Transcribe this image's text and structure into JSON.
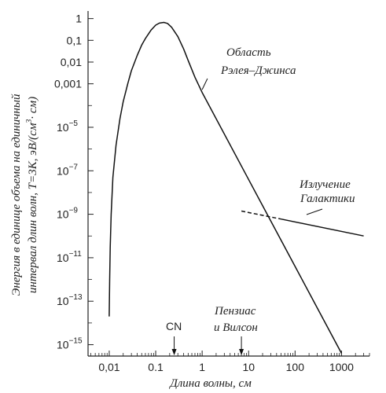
{
  "chart_data": {
    "type": "line",
    "title": "",
    "xlabel": "Длина волны, см",
    "ylabel_line1": "Энергия в единице объема на единичный",
    "ylabel_line2_a": "интервал длин волн, T=3K, эВ/(см",
    "ylabel_line2_sup": "3",
    "ylabel_line2_b": "· см)",
    "x_scale": "log",
    "y_scale": "log",
    "xlim": [
      0.0035,
      4000
    ],
    "ylim": [
      3e-16,
      1.6
    ],
    "x_ticks": [
      {
        "value": 0.01,
        "label": "0,01"
      },
      {
        "value": 0.1,
        "label": "0.1"
      },
      {
        "value": 1,
        "label": "1"
      },
      {
        "value": 10,
        "label": "10"
      },
      {
        "value": 100,
        "label": "100"
      },
      {
        "value": 1000,
        "label": "1000"
      }
    ],
    "y_ticks": [
      {
        "value": 1,
        "label": "1",
        "exp": ""
      },
      {
        "value": 0.1,
        "label": "0,1",
        "exp": ""
      },
      {
        "value": 0.01,
        "label": "0,01",
        "exp": ""
      },
      {
        "value": 0.001,
        "label": "0,001",
        "exp": ""
      },
      {
        "value": 1e-05,
        "label": "10",
        "exp": "−5"
      },
      {
        "value": 1e-07,
        "label": "10",
        "exp": "−7"
      },
      {
        "value": 1e-09,
        "label": "10",
        "exp": "−9"
      },
      {
        "value": 1e-11,
        "label": "10",
        "exp": "−11"
      },
      {
        "value": 1e-13,
        "label": "10",
        "exp": "−13"
      },
      {
        "value": 1e-15,
        "label": "10",
        "exp": "−15"
      }
    ],
    "series": [
      {
        "style": "solid",
        "points": [
          [
            0.01,
            2e-14
          ],
          [
            0.0102,
            1e-12
          ],
          [
            0.0105,
            3e-11
          ],
          [
            0.011,
            1e-09
          ],
          [
            0.012,
            5e-08
          ],
          [
            0.014,
            1.5e-06
          ],
          [
            0.017,
            2.5e-05
          ],
          [
            0.02,
            0.00015
          ],
          [
            0.025,
            0.001
          ],
          [
            0.03,
            0.004
          ],
          [
            0.04,
            0.02
          ],
          [
            0.05,
            0.06
          ],
          [
            0.06,
            0.12
          ],
          [
            0.08,
            0.3
          ],
          [
            0.1,
            0.5
          ],
          [
            0.12,
            0.62
          ],
          [
            0.15,
            0.67
          ],
          [
            0.18,
            0.6
          ],
          [
            0.22,
            0.4
          ],
          [
            0.3,
            0.15
          ],
          [
            0.4,
            0.04
          ],
          [
            0.5,
            0.012
          ],
          [
            0.7,
            0.002
          ],
          [
            1,
            0.0004
          ],
          [
            10,
            4e-08
          ],
          [
            100,
            4e-12
          ],
          [
            1000,
            4e-16
          ]
        ]
      },
      {
        "style": "dashed",
        "points": [
          [
            7,
            1.4e-09
          ],
          [
            50,
            6e-10
          ]
        ]
      },
      {
        "style": "solid",
        "points": [
          [
            50,
            6e-10
          ],
          [
            3000,
            1e-10
          ]
        ]
      }
    ],
    "annotations": {
      "rayleigh_line1": "Область",
      "rayleigh_line2": "Рэлея–Джинса",
      "galaxy_line1": "Излучение",
      "galaxy_line2": "Галактики",
      "cn": "CN",
      "cn_x": 0.25,
      "penzias_line1": "Пензиас",
      "penzias_line2": "и Вилсон",
      "penzias_x": 7
    }
  }
}
